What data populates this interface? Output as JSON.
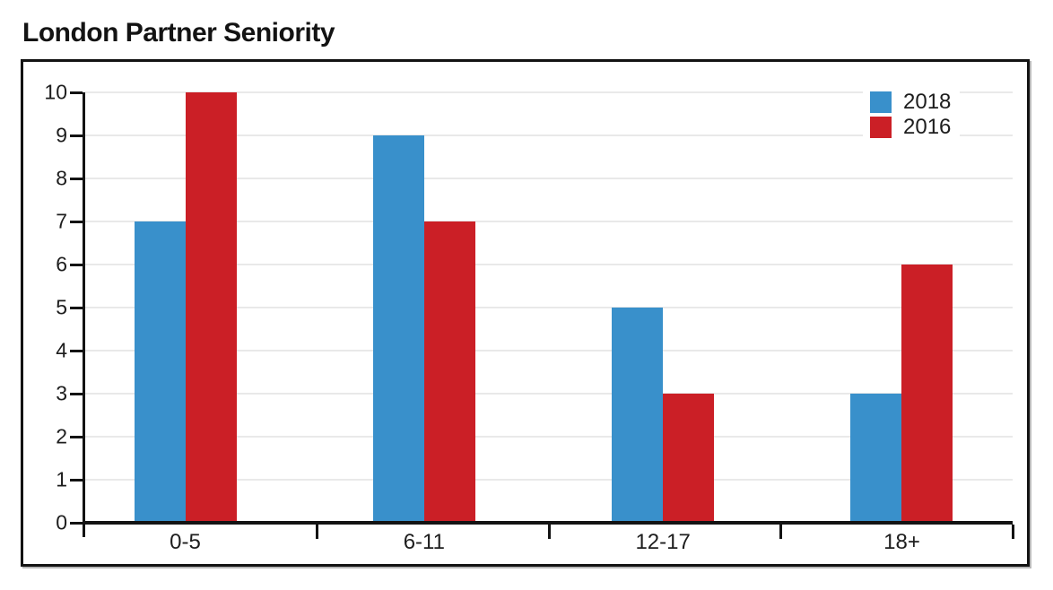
{
  "page": {
    "heading": "London Partner Seniority"
  },
  "chart_data": {
    "type": "bar",
    "title": "London Partner Seniority",
    "categories": [
      "0-5",
      "6-11",
      "12-17",
      "18+"
    ],
    "series": [
      {
        "name": "2018",
        "color": "#3990cb",
        "values": [
          7,
          9,
          5,
          3
        ]
      },
      {
        "name": "2016",
        "color": "#cb1f26",
        "values": [
          10,
          7,
          3,
          6
        ]
      }
    ],
    "xlabel": "",
    "ylabel": "",
    "ylim": [
      0,
      10
    ],
    "yticks": [
      0,
      1,
      2,
      3,
      4,
      5,
      6,
      7,
      8,
      9,
      10
    ],
    "grid": true,
    "legend_position": "top-right",
    "colors": {
      "axis": "#131313",
      "gridline": "#e9e9e9",
      "tick_label": "#1d1d1d",
      "frame_border": "#131313",
      "frame_shadow": "#b8b8b8",
      "background": "#ffffff"
    }
  }
}
